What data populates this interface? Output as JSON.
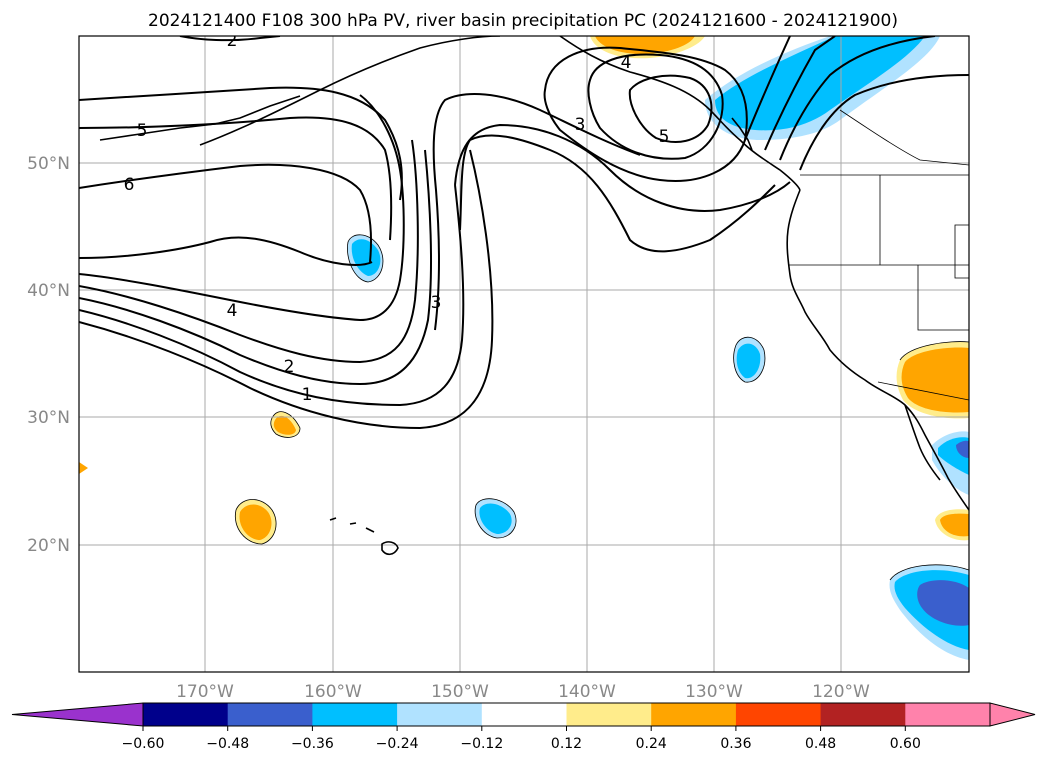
{
  "title": "2024121400 F108 300 hPa PV, river basin precipitation PC (2024121600 - 2024121900)",
  "lat_ticks": [
    "50°N",
    "40°N",
    "30°N",
    "20°N"
  ],
  "lon_ticks": [
    "170°W",
    "160°W",
    "150°W",
    "140°W",
    "130°W",
    "120°W"
  ],
  "colorbar": {
    "tick_labels": [
      "−0.60",
      "−0.48",
      "−0.36",
      "−0.24",
      "−0.12",
      "0.12",
      "0.24",
      "0.36",
      "0.48",
      "0.60"
    ],
    "colors": [
      "#9a32cd",
      "#00008b",
      "#3a5fcd",
      "#00bfff",
      "#b0e2ff",
      "#ffffff",
      "#ffec8b",
      "#ffa500",
      "#ff4500",
      "#b22222",
      "#ff82ab",
      "#ff82ab"
    ],
    "extend": "both"
  },
  "contour_labels": [
    "2",
    "5",
    "6",
    "4",
    "2",
    "1",
    "3",
    "3",
    "5",
    "4"
  ],
  "colors": {
    "positive_light": "#ffec8b",
    "positive": "#ffa500",
    "negative_light": "#b0e2ff",
    "negative": "#00bfff",
    "negative_strong": "#3a5fcd",
    "grid": "#aaaaaa"
  }
}
